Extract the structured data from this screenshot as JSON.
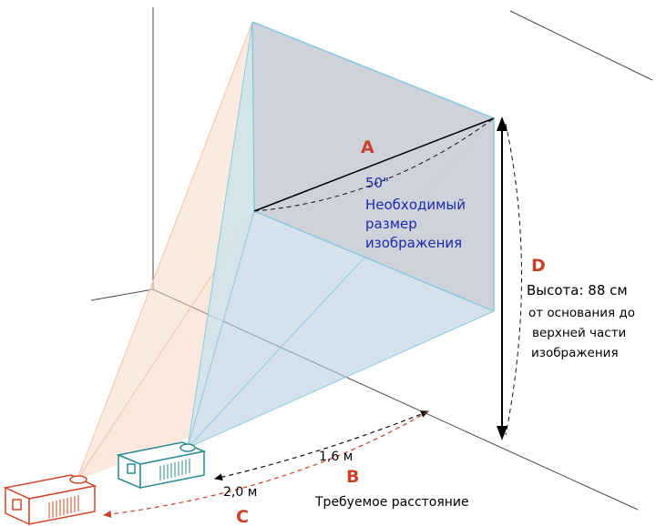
{
  "labels": {
    "a": "A",
    "b": "B",
    "c": "C",
    "d": "D"
  },
  "diagonal": {
    "size": "50\"",
    "caption": [
      "Необходимый",
      "размер",
      "изображения"
    ]
  },
  "height": {
    "title": "Высота: 88 см",
    "caption": [
      "от основания до",
      "верхней части",
      "изображения"
    ]
  },
  "distance": {
    "near": "1,6 м",
    "far": "2,0 м",
    "caption": "Требуемое расстояние"
  },
  "colors": {
    "accent_red": "#c8412b",
    "text_blue": "#1f2aa6",
    "screen_fill": "#c9ced8",
    "beam_near": "#9ed3e6",
    "beam_far": "#f6d9c4",
    "projector_near": "#2a8a90",
    "projector_far": "#d0452a"
  }
}
